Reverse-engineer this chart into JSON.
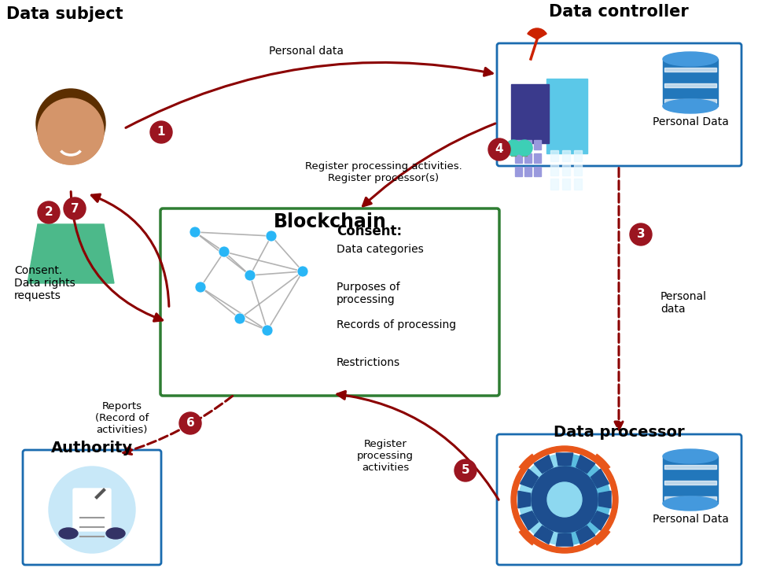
{
  "title_data_subject": "Data subject",
  "title_data_controller": "Data controller",
  "title_blockchain": "Blockchain",
  "title_authority": "Authority",
  "title_data_processor": "Data processor",
  "consent_title": "Consent:",
  "consent_items": [
    "Data categories",
    "Purposes of\nprocessing",
    "Records of processing",
    "Restrictions"
  ],
  "label_personal_data_top": "Personal data",
  "label_register_processing": "Register processing activities.\nRegister processor(s)",
  "label_consent_data_rights": "Consent.\nData rights\nrequests",
  "label_personal_data_right": "Personal\ndata",
  "label_reports": "Reports\n(Record of\nactivities)",
  "label_register_proc_bottom": "Register\nprocessing\nactivities",
  "label_personal_data_bottom": "Personal Data",
  "arrow_color": "#8B0000",
  "box_blockchain_color": "#2E7D32",
  "box_blue_color": "#1A6BAF",
  "background": "#FFFFFF",
  "person_skin": "#D4956A",
  "person_hair": "#5C2E00",
  "person_shirt": "#4CB98A",
  "building_dark": "#3A3A8C",
  "building_light": "#5BC8E8",
  "building_mid": "#4488CC",
  "tree_color": "#3DCFB6",
  "dish_color": "#CC2200",
  "db_top": "#4499DD",
  "db_mid": "#2277BB",
  "db_stripe": "#FFFFFF",
  "gear_blue_light": "#8DD8F0",
  "gear_blue_dark": "#1D4E8F",
  "gear_orange": "#E8561A",
  "badge_color": "#9B1520"
}
